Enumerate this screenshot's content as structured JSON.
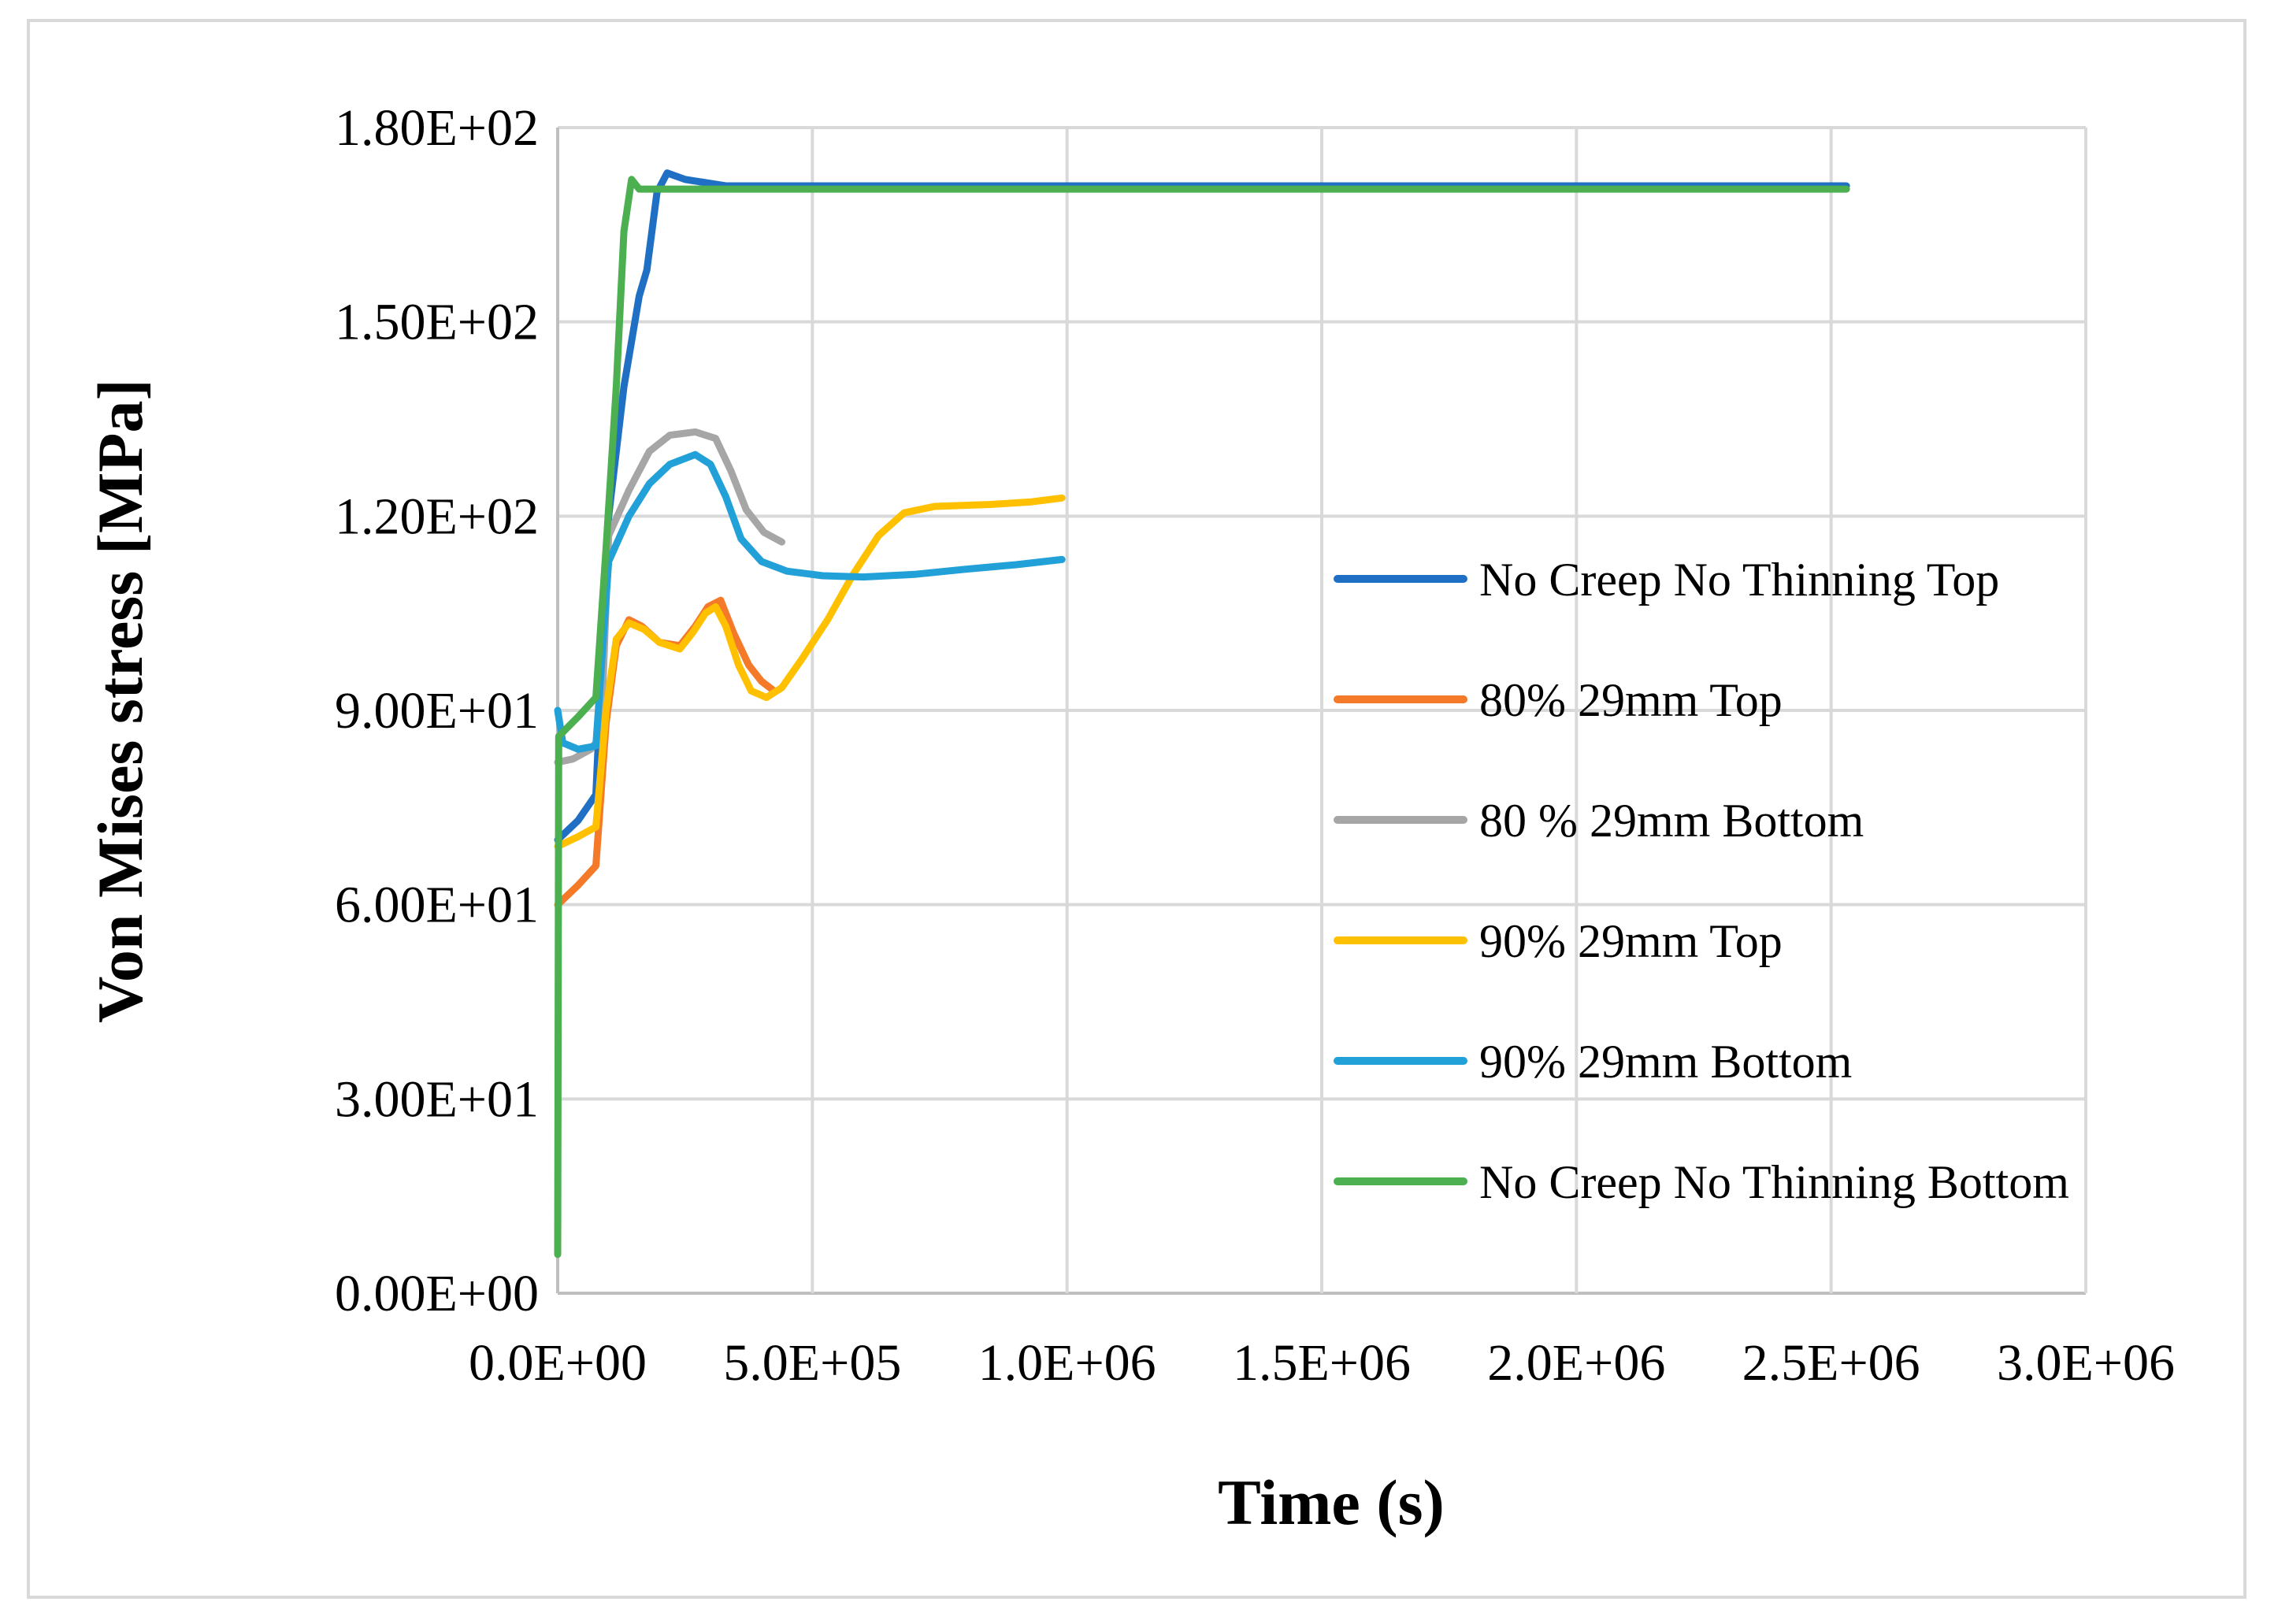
{
  "chart_data": {
    "type": "line",
    "title": "",
    "xlabel": "Time (s)",
    "ylabel": "Von Mises stress [MPa]",
    "xlim": [
      0,
      3000000
    ],
    "ylim": [
      0,
      180
    ],
    "x_ticks": [
      0,
      500000,
      1000000,
      1500000,
      2000000,
      2500000,
      3000000
    ],
    "x_tick_labels": [
      "0.0E+00",
      "5.0E+05",
      "1.0E+06",
      "1.5E+06",
      "2.0E+06",
      "2.5E+06",
      "3.0E+06"
    ],
    "y_ticks": [
      0,
      30,
      60,
      90,
      120,
      150,
      180
    ],
    "y_tick_labels": [
      "0.00E+00",
      "3.00E+01",
      "6.00E+01",
      "9.00E+01",
      "1.20E+02",
      "1.50E+02",
      "1.80E+02"
    ],
    "grid": true,
    "legend_position": "right",
    "series": [
      {
        "name": "No Creep No Thinning Top",
        "color": "#1f6fc5",
        "points": [
          [
            0,
            70
          ],
          [
            40000,
            73
          ],
          [
            75000,
            77
          ],
          [
            100000,
            120
          ],
          [
            130000,
            140
          ],
          [
            160000,
            154
          ],
          [
            175000,
            158
          ],
          [
            195000,
            170
          ],
          [
            215000,
            173
          ],
          [
            250000,
            172
          ],
          [
            330000,
            171
          ],
          [
            1000000,
            171
          ],
          [
            2000000,
            171
          ],
          [
            2530000,
            171
          ]
        ]
      },
      {
        "name": "80% 29mm Top",
        "color": "#f47a2a",
        "points": [
          [
            0,
            60
          ],
          [
            40000,
            63
          ],
          [
            75000,
            66
          ],
          [
            95000,
            88
          ],
          [
            115000,
            100
          ],
          [
            140000,
            104
          ],
          [
            165000,
            103
          ],
          [
            200000,
            100.5
          ],
          [
            240000,
            100
          ],
          [
            270000,
            103
          ],
          [
            295000,
            106
          ],
          [
            320000,
            107
          ],
          [
            345000,
            102
          ],
          [
            375000,
            97
          ],
          [
            400000,
            94.5
          ],
          [
            425000,
            93
          ]
        ]
      },
      {
        "name": "80 % 29mm Bottom",
        "color": "#a6a6a6",
        "points": [
          [
            0,
            82
          ],
          [
            30000,
            82.5
          ],
          [
            65000,
            84
          ],
          [
            85000,
            86
          ],
          [
            100000,
            117
          ],
          [
            140000,
            124
          ],
          [
            180000,
            130
          ],
          [
            220000,
            132.5
          ],
          [
            270000,
            133
          ],
          [
            310000,
            132
          ],
          [
            340000,
            127
          ],
          [
            370000,
            121
          ],
          [
            405000,
            117.5
          ],
          [
            440000,
            116
          ]
        ]
      },
      {
        "name": "90% 29mm Top",
        "color": "#ffc000",
        "points": [
          [
            0,
            69
          ],
          [
            40000,
            70.5
          ],
          [
            75000,
            72
          ],
          [
            95000,
            90
          ],
          [
            115000,
            101
          ],
          [
            140000,
            103.5
          ],
          [
            170000,
            102.5
          ],
          [
            200000,
            100.5
          ],
          [
            240000,
            99.5
          ],
          [
            265000,
            102
          ],
          [
            290000,
            105
          ],
          [
            310000,
            106
          ],
          [
            330000,
            103
          ],
          [
            355000,
            97
          ],
          [
            380000,
            93
          ],
          [
            410000,
            92
          ],
          [
            440000,
            93.5
          ],
          [
            480000,
            98
          ],
          [
            530000,
            104
          ],
          [
            580000,
            111
          ],
          [
            630000,
            117
          ],
          [
            680000,
            120.5
          ],
          [
            740000,
            121.5
          ],
          [
            850000,
            121.8
          ],
          [
            930000,
            122.2
          ],
          [
            990000,
            122.8
          ]
        ]
      },
      {
        "name": "90% 29mm Bottom",
        "color": "#22a0d8",
        "points": [
          [
            0,
            90
          ],
          [
            10000,
            85
          ],
          [
            40000,
            84
          ],
          [
            75000,
            84.5
          ],
          [
            100000,
            113
          ],
          [
            140000,
            120
          ],
          [
            180000,
            125
          ],
          [
            220000,
            128
          ],
          [
            270000,
            129.5
          ],
          [
            300000,
            128
          ],
          [
            330000,
            123
          ],
          [
            360000,
            116.5
          ],
          [
            400000,
            113
          ],
          [
            450000,
            111.5
          ],
          [
            520000,
            110.8
          ],
          [
            600000,
            110.6
          ],
          [
            700000,
            111
          ],
          [
            800000,
            111.8
          ],
          [
            900000,
            112.5
          ],
          [
            990000,
            113.3
          ]
        ]
      },
      {
        "name": "No Creep No Thinning Bottom",
        "color": "#4caf50",
        "points": [
          [
            0,
            6
          ],
          [
            2000,
            86
          ],
          [
            40000,
            89
          ],
          [
            75000,
            92
          ],
          [
            95000,
            115
          ],
          [
            115000,
            140
          ],
          [
            130000,
            164
          ],
          [
            145000,
            172
          ],
          [
            160000,
            170.5
          ],
          [
            500000,
            170.5
          ],
          [
            1000000,
            170.5
          ],
          [
            2000000,
            170.5
          ],
          [
            2530000,
            170.5
          ]
        ]
      }
    ]
  }
}
